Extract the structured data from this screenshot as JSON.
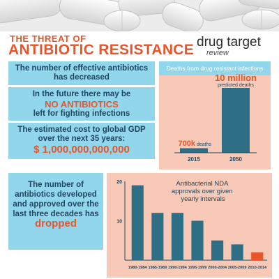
{
  "header": {
    "title_line1": "THE THREAT OF",
    "title_line2": "ANTIBIOTIC RESISTANCE",
    "brand_line1": "drug target",
    "brand_line2": "review"
  },
  "facts": {
    "fact1": "The number of effective antibiotics has decreased",
    "fact2_a": "In the future there may be",
    "fact2_b": "NO ANTIBIOTICS",
    "fact2_c": "left for fighting infections",
    "fact3_a": "The estimated cost to global GDP over the next 35 years:",
    "fact3_b": "$ 1,000,000,000,000",
    "fact4_a": "The number of antibiotics developed and approved over the last three decades has",
    "fact4_b": "dropped"
  },
  "colors": {
    "teal_bar": "#2f6f86",
    "highlight_bar": "#e8552a",
    "panel_blue": "#92d6ec",
    "panel_pink": "#f7c9b6"
  },
  "chart_data": [
    {
      "type": "bar",
      "title": "Deaths from drug resistant infections",
      "categories": [
        "2015",
        "2050"
      ],
      "values": [
        700000,
        10000000
      ],
      "data_labels": [
        {
          "value": "700k",
          "unit": "deaths"
        },
        {
          "value": "10 million",
          "unit": "predicted deaths"
        }
      ],
      "ylim": [
        0,
        10000000
      ],
      "grid": false
    },
    {
      "type": "bar",
      "title": "Antibacterial NDA approvals over given yearly intervals",
      "categories": [
        "1980-1984",
        "1985-1989",
        "1990-1994",
        "1995-1999",
        "2000-2004",
        "2005-2009",
        "2010-2014"
      ],
      "values": [
        19,
        12,
        12,
        10,
        5,
        4,
        2
      ],
      "highlight_index": 6,
      "yticks": [
        10,
        20
      ],
      "ylim": [
        0,
        20
      ],
      "grid": false
    }
  ]
}
